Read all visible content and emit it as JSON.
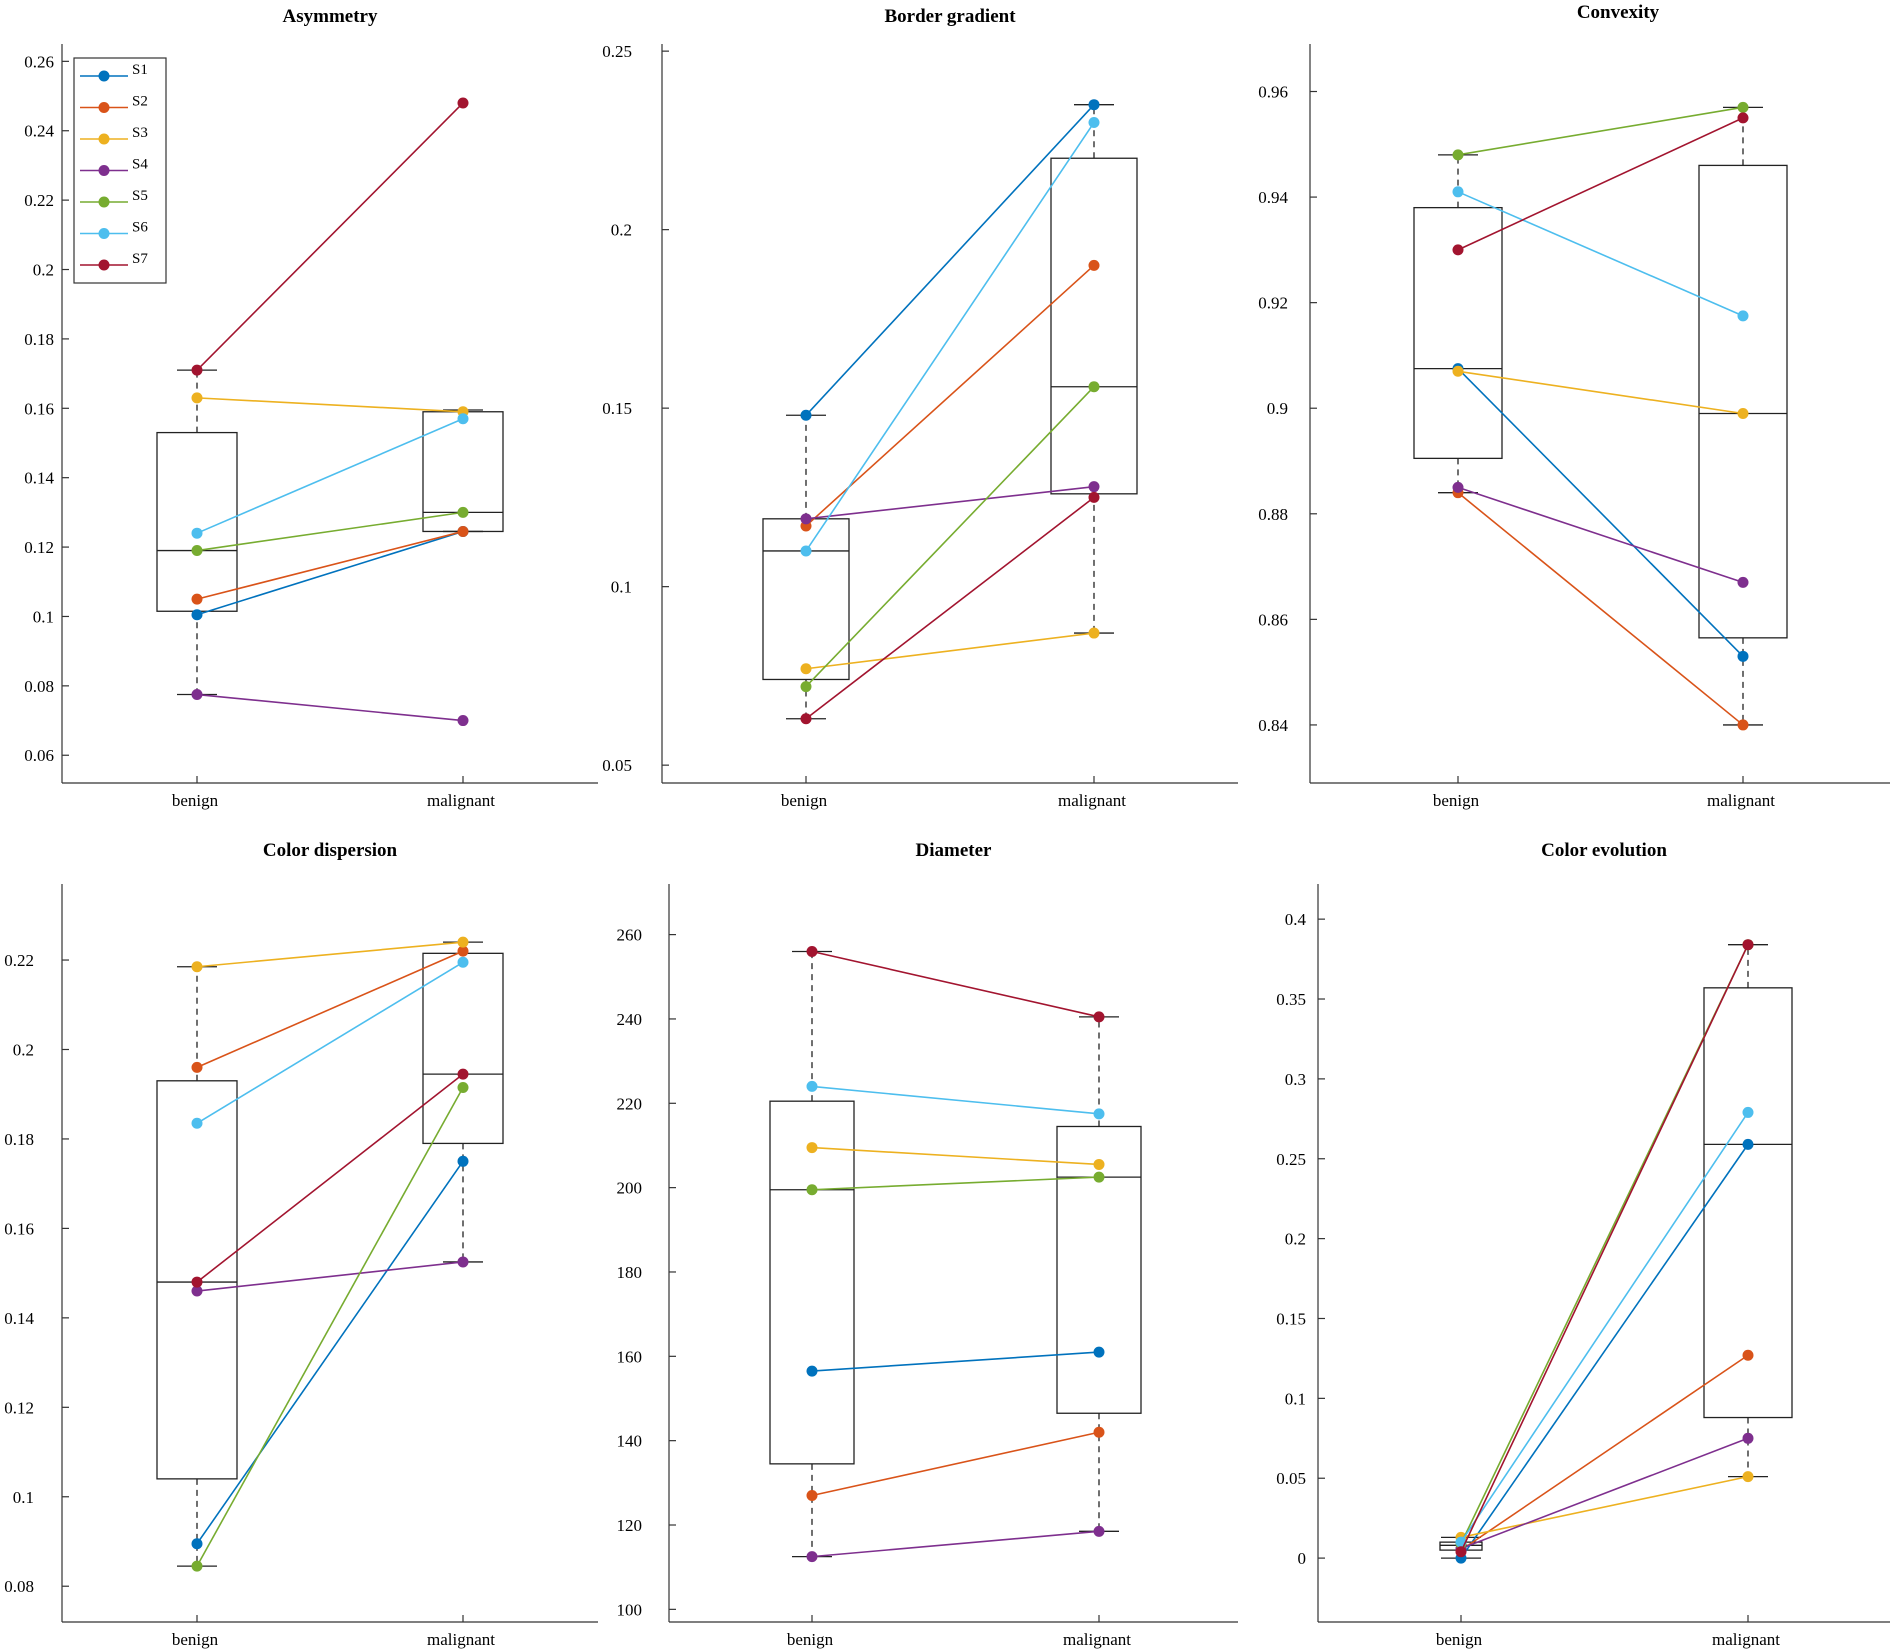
{
  "chart_data": [
    {
      "type": "box",
      "title": "Asymmetry",
      "categories": [
        "benign",
        "malignant"
      ],
      "ylim": [
        0.052,
        0.265
      ],
      "yticks": [
        "0.06",
        "0.08",
        "0.1",
        "0.12",
        "0.14",
        "0.16",
        "0.18",
        "0.2",
        "0.22",
        "0.24",
        "0.26"
      ],
      "ytick_values": [
        0.06,
        0.08,
        0.1,
        0.12,
        0.14,
        0.16,
        0.18,
        0.2,
        0.22,
        0.24,
        0.26
      ],
      "boxes": [
        {
          "whisker_low": 0.0775,
          "q1": 0.1015,
          "median": 0.119,
          "q3": 0.153,
          "whisker_high": 0.171
        },
        {
          "whisker_low": 0.1245,
          "q1": 0.1245,
          "median": 0.13,
          "q3": 0.159,
          "whisker_high": 0.1595
        }
      ],
      "legend": true,
      "series": [
        {
          "name": "S1",
          "values": [
            0.1005,
            0.1245
          ]
        },
        {
          "name": "S2",
          "values": [
            0.105,
            0.1245
          ]
        },
        {
          "name": "S3",
          "values": [
            0.163,
            0.159
          ]
        },
        {
          "name": "S4",
          "values": [
            0.0775,
            0.07
          ]
        },
        {
          "name": "S5",
          "values": [
            0.119,
            0.13
          ]
        },
        {
          "name": "S6",
          "values": [
            0.124,
            0.157
          ]
        },
        {
          "name": "S7",
          "values": [
            0.171,
            0.248
          ]
        }
      ]
    },
    {
      "type": "box",
      "title": "Border gradient",
      "categories": [
        "benign",
        "malignant"
      ],
      "ylim": [
        0.045,
        0.252
      ],
      "yticks": [
        "0.05",
        "0.1",
        "0.15",
        "0.2",
        "0.25"
      ],
      "ytick_values": [
        0.05,
        0.1,
        0.15,
        0.2,
        0.25
      ],
      "boxes": [
        {
          "whisker_low": 0.063,
          "q1": 0.074,
          "median": 0.11,
          "q3": 0.119,
          "whisker_high": 0.148
        },
        {
          "whisker_low": 0.087,
          "q1": 0.126,
          "median": 0.156,
          "q3": 0.22,
          "whisker_high": 0.235
        }
      ],
      "legend": false,
      "series": [
        {
          "name": "S1",
          "values": [
            0.148,
            0.235
          ]
        },
        {
          "name": "S2",
          "values": [
            0.117,
            0.19
          ]
        },
        {
          "name": "S3",
          "values": [
            0.077,
            0.087
          ]
        },
        {
          "name": "S4",
          "values": [
            0.119,
            0.128
          ]
        },
        {
          "name": "S5",
          "values": [
            0.072,
            0.156
          ]
        },
        {
          "name": "S6",
          "values": [
            0.11,
            0.23
          ]
        },
        {
          "name": "S7",
          "values": [
            0.063,
            0.125
          ]
        }
      ]
    },
    {
      "type": "box",
      "title": "Convexity",
      "categories": [
        "benign",
        "malignant"
      ],
      "ylim": [
        0.829,
        0.969
      ],
      "yticks": [
        "0.84",
        "0.86",
        "0.88",
        "0.9",
        "0.92",
        "0.94",
        "0.96"
      ],
      "ytick_values": [
        0.84,
        0.86,
        0.88,
        0.9,
        0.92,
        0.94,
        0.96
      ],
      "boxes": [
        {
          "whisker_low": 0.884,
          "q1": 0.8905,
          "median": 0.9075,
          "q3": 0.938,
          "whisker_high": 0.948
        },
        {
          "whisker_low": 0.84,
          "q1": 0.8565,
          "median": 0.899,
          "q3": 0.946,
          "whisker_high": 0.957
        }
      ],
      "legend": false,
      "series": [
        {
          "name": "S1",
          "values": [
            0.9075,
            0.853
          ]
        },
        {
          "name": "S2",
          "values": [
            0.884,
            0.84
          ]
        },
        {
          "name": "S3",
          "values": [
            0.907,
            0.899
          ]
        },
        {
          "name": "S4",
          "values": [
            0.885,
            0.867
          ]
        },
        {
          "name": "S5",
          "values": [
            0.948,
            0.957
          ]
        },
        {
          "name": "S6",
          "values": [
            0.941,
            0.9175
          ]
        },
        {
          "name": "S7",
          "values": [
            0.93,
            0.955
          ]
        }
      ]
    },
    {
      "type": "box",
      "title": "Color dispersion",
      "categories": [
        "benign",
        "malignant"
      ],
      "ylim": [
        0.072,
        0.237
      ],
      "yticks": [
        "0.08",
        "0.1",
        "0.12",
        "0.14",
        "0.16",
        "0.18",
        "0.2",
        "0.22"
      ],
      "ytick_values": [
        0.08,
        0.1,
        0.12,
        0.14,
        0.16,
        0.18,
        0.2,
        0.22
      ],
      "boxes": [
        {
          "whisker_low": 0.0845,
          "q1": 0.104,
          "median": 0.148,
          "q3": 0.193,
          "whisker_high": 0.2185
        },
        {
          "whisker_low": 0.1525,
          "q1": 0.179,
          "median": 0.1945,
          "q3": 0.2215,
          "whisker_high": 0.224
        }
      ],
      "legend": false,
      "series": [
        {
          "name": "S1",
          "values": [
            0.0895,
            0.175
          ]
        },
        {
          "name": "S2",
          "values": [
            0.196,
            0.222
          ]
        },
        {
          "name": "S3",
          "values": [
            0.2185,
            0.224
          ]
        },
        {
          "name": "S4",
          "values": [
            0.146,
            0.1525
          ]
        },
        {
          "name": "S5",
          "values": [
            0.0845,
            0.1915
          ]
        },
        {
          "name": "S6",
          "values": [
            0.1835,
            0.2195
          ]
        },
        {
          "name": "S7",
          "values": [
            0.148,
            0.1945
          ]
        }
      ]
    },
    {
      "type": "box",
      "title": "Diameter",
      "categories": [
        "benign",
        "malignant"
      ],
      "ylim": [
        97,
        272
      ],
      "yticks": [
        "100",
        "120",
        "140",
        "160",
        "180",
        "200",
        "220",
        "240",
        "260"
      ],
      "ytick_values": [
        100,
        120,
        140,
        160,
        180,
        200,
        220,
        240,
        260
      ],
      "boxes": [
        {
          "whisker_low": 112.5,
          "q1": 134.5,
          "median": 199.5,
          "q3": 220.5,
          "whisker_high": 256
        },
        {
          "whisker_low": 118.5,
          "q1": 146.5,
          "median": 202.5,
          "q3": 214.5,
          "whisker_high": 240.5
        }
      ],
      "legend": false,
      "series": [
        {
          "name": "S1",
          "values": [
            156.5,
            161
          ]
        },
        {
          "name": "S2",
          "values": [
            127,
            142
          ]
        },
        {
          "name": "S3",
          "values": [
            209.5,
            205.5
          ]
        },
        {
          "name": "S4",
          "values": [
            112.5,
            118.5
          ]
        },
        {
          "name": "S5",
          "values": [
            199.5,
            202.5
          ]
        },
        {
          "name": "S6",
          "values": [
            224,
            217.5
          ]
        },
        {
          "name": "S7",
          "values": [
            256,
            240.5
          ]
        }
      ]
    },
    {
      "type": "box",
      "title": "Color evolution",
      "categories": [
        "benign",
        "malignant"
      ],
      "ylim": [
        -0.04,
        0.422
      ],
      "yticks": [
        "0",
        "0.05",
        "0.1",
        "0.15",
        "0.2",
        "0.25",
        "0.3",
        "0.35",
        "0.4"
      ],
      "ytick_values": [
        0,
        0.05,
        0.1,
        0.15,
        0.2,
        0.25,
        0.3,
        0.35,
        0.4
      ],
      "boxes": [
        {
          "whisker_low": 0.0,
          "q1": 0.005,
          "median": 0.008,
          "q3": 0.01,
          "whisker_high": 0.013
        },
        {
          "whisker_low": 0.051,
          "q1": 0.088,
          "median": 0.259,
          "q3": 0.357,
          "whisker_high": 0.384
        }
      ],
      "legend": false,
      "series": [
        {
          "name": "S1",
          "values": [
            0.0,
            0.259
          ]
        },
        {
          "name": "S2",
          "values": [
            0.005,
            0.127
          ]
        },
        {
          "name": "S3",
          "values": [
            0.013,
            0.051
          ]
        },
        {
          "name": "S4",
          "values": [
            0.006,
            0.075
          ]
        },
        {
          "name": "S5",
          "values": [
            0.009,
            0.384
          ]
        },
        {
          "name": "S6",
          "values": [
            0.01,
            0.279
          ]
        },
        {
          "name": "S7",
          "values": [
            0.004,
            0.384
          ]
        }
      ]
    }
  ],
  "series_colors": [
    "#0072BD",
    "#D95319",
    "#EDB120",
    "#7E2F8E",
    "#77AC30",
    "#4DBEEE",
    "#A2142F"
  ]
}
